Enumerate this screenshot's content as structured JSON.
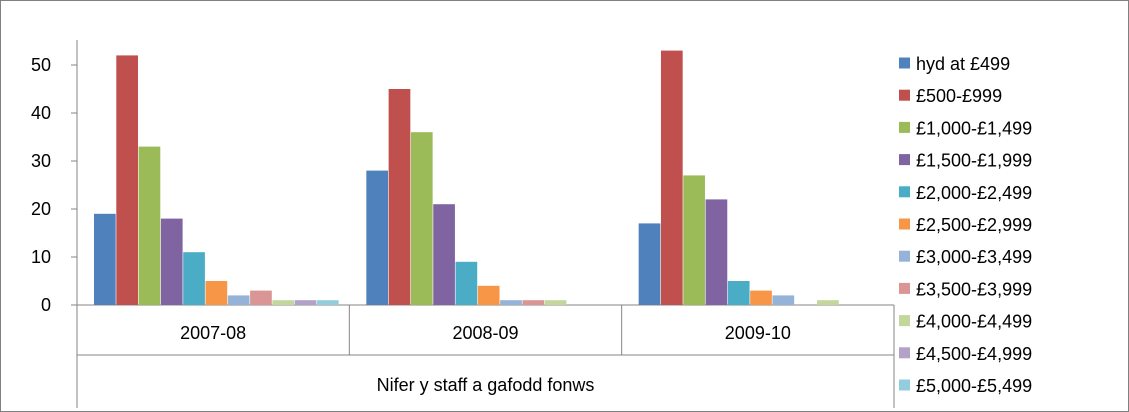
{
  "chart_data": {
    "type": "bar",
    "categories": [
      "2007-08",
      "2008-09",
      "2009-10"
    ],
    "xlabel": "Nifer y staff a gafodd fonws",
    "ylabel": "",
    "ylim": [
      0,
      55
    ],
    "yticks": [
      0,
      10,
      20,
      30,
      40,
      50
    ],
    "legend_position": "right",
    "grid": false,
    "series": [
      {
        "name": "hyd at £499",
        "color": "#4F81BD",
        "values": [
          19,
          28,
          17
        ]
      },
      {
        "name": "£500-£999",
        "color": "#C0504D",
        "values": [
          52,
          45,
          53
        ]
      },
      {
        "name": "£1,000-£1,499",
        "color": "#9BBB59",
        "values": [
          33,
          36,
          27
        ]
      },
      {
        "name": "£1,500-£1,999",
        "color": "#8064A2",
        "values": [
          18,
          21,
          22
        ]
      },
      {
        "name": "£2,000-£2,499",
        "color": "#4BACC6",
        "values": [
          11,
          9,
          5
        ]
      },
      {
        "name": "£2,500-£2,999",
        "color": "#F79646",
        "values": [
          5,
          4,
          3
        ]
      },
      {
        "name": "£3,000-£3,499",
        "color": "#95B3D7",
        "values": [
          2,
          1,
          2
        ]
      },
      {
        "name": "£3,500-£3,999",
        "color": "#D99694",
        "values": [
          3,
          1,
          0
        ]
      },
      {
        "name": "£4,000-£4,499",
        "color": "#C3D69B",
        "values": [
          1,
          1,
          1
        ]
      },
      {
        "name": "£4,500-£4,999",
        "color": "#B2A2C7",
        "values": [
          1,
          0,
          0
        ]
      },
      {
        "name": "£5,000-£5,499",
        "color": "#93CDDD",
        "values": [
          1,
          0,
          0
        ]
      }
    ]
  }
}
